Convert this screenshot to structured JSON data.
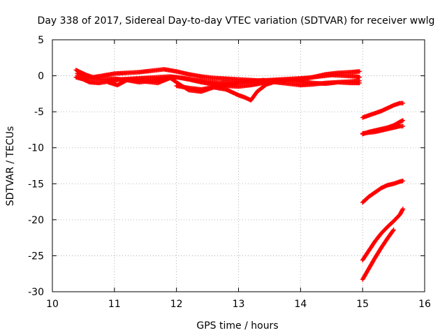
{
  "chart_data": {
    "type": "scatter",
    "title": "Day 338 of 2017, Sidereal Day-to-day VTEC variation (SDTVAR) for receiver wwlg",
    "xlabel": "GPS time / hours",
    "ylabel": "SDTVAR / TECUs",
    "xlim": [
      10,
      16
    ],
    "ylim": [
      -30,
      5
    ],
    "xticks": [
      10,
      11,
      12,
      13,
      14,
      15,
      16
    ],
    "yticks": [
      5,
      0,
      -5,
      -10,
      -15,
      -20,
      -25,
      -30
    ],
    "grid": true,
    "marker": "plus",
    "color": "#ff0000",
    "series": [
      {
        "x": [
          10.38,
          10.45,
          10.55,
          10.65,
          10.8,
          11.0,
          11.2,
          11.4,
          11.6,
          11.8,
          12.0,
          12.2,
          12.4,
          12.6,
          12.8,
          13.0,
          13.2,
          13.4,
          13.6,
          13.8,
          14.0,
          14.2,
          14.4,
          14.6,
          14.8,
          14.95
        ],
        "y": [
          0.8,
          0.5,
          0.1,
          -0.2,
          0.0,
          0.3,
          0.4,
          0.5,
          0.7,
          0.9,
          0.6,
          0.2,
          -0.1,
          -0.3,
          -0.4,
          -0.5,
          -0.6,
          -0.7,
          -0.7,
          -0.6,
          -0.5,
          -0.2,
          0.2,
          0.4,
          0.5,
          0.6
        ]
      },
      {
        "x": [
          10.38,
          10.5,
          10.6,
          10.75,
          10.9,
          11.1,
          11.3,
          11.5,
          11.7,
          11.9,
          12.1,
          12.3,
          12.5,
          12.7,
          12.9,
          13.1,
          13.3,
          13.5,
          13.7,
          13.9,
          14.1,
          14.3,
          14.5,
          14.7,
          14.9,
          14.95
        ],
        "y": [
          -0.2,
          -0.5,
          -0.9,
          -1.0,
          -0.8,
          -0.5,
          -0.4,
          -0.3,
          -0.2,
          -0.1,
          -0.3,
          -0.6,
          -0.8,
          -1.0,
          -0.9,
          -0.8,
          -0.7,
          -0.6,
          -0.5,
          -0.4,
          -0.3,
          -0.1,
          0.1,
          0.0,
          -0.1,
          -0.2
        ]
      },
      {
        "x": [
          10.4,
          10.5,
          10.6,
          10.8,
          11.0,
          11.2,
          11.4,
          11.6,
          11.8,
          12.0,
          12.2,
          12.4,
          12.6,
          12.8,
          13.0,
          13.2,
          13.4,
          13.6,
          13.8,
          14.0,
          14.2,
          14.4,
          14.6,
          14.8,
          14.95
        ],
        "y": [
          0.3,
          0.0,
          -0.3,
          -0.5,
          -0.4,
          -0.6,
          -0.9,
          -0.7,
          -0.4,
          -0.2,
          -0.5,
          -0.9,
          -1.2,
          -1.4,
          -1.5,
          -1.3,
          -1.0,
          -0.8,
          -0.6,
          -0.8,
          -1.0,
          -1.1,
          -0.9,
          -0.8,
          -0.7
        ]
      },
      {
        "x": [
          10.9,
          11.05,
          11.2,
          11.35,
          11.5,
          11.7,
          11.9,
          12.05,
          12.2,
          12.4,
          12.6,
          12.8,
          13.0,
          13.1,
          13.2,
          13.3,
          13.45,
          13.6
        ],
        "y": [
          -0.9,
          -1.3,
          -0.6,
          -0.4,
          -0.8,
          -1.0,
          -0.3,
          -1.2,
          -2.0,
          -2.2,
          -1.6,
          -1.9,
          -2.7,
          -3.0,
          -3.4,
          -2.2,
          -1.2,
          -0.8
        ]
      },
      {
        "x": [
          12.0,
          12.2,
          12.4,
          12.6,
          12.8,
          13.0,
          13.2,
          13.4,
          13.6,
          13.8,
          14.0,
          14.2,
          14.4,
          14.6,
          14.8,
          14.95
        ],
        "y": [
          -1.4,
          -1.7,
          -1.9,
          -1.6,
          -1.3,
          -1.0,
          -0.8,
          -0.6,
          -0.9,
          -1.1,
          -1.3,
          -1.2,
          -1.0,
          -0.9,
          -1.0,
          -1.0
        ]
      },
      {
        "x": [
          15.0,
          15.1,
          15.2,
          15.3,
          15.4,
          15.5,
          15.6,
          15.65
        ],
        "y": [
          -5.8,
          -5.5,
          -5.2,
          -4.9,
          -4.5,
          -4.1,
          -3.8,
          -3.8
        ]
      },
      {
        "x": [
          15.0,
          15.1,
          15.2,
          15.3,
          15.4,
          15.5,
          15.6,
          15.65
        ],
        "y": [
          -8.1,
          -7.8,
          -7.6,
          -7.4,
          -7.2,
          -6.9,
          -6.4,
          -6.2
        ]
      },
      {
        "x": [
          15.0,
          15.1,
          15.2,
          15.3,
          15.4,
          15.5,
          15.6,
          15.65
        ],
        "y": [
          -8.0,
          -7.9,
          -7.8,
          -7.6,
          -7.4,
          -7.2,
          -7.0,
          -7.0
        ]
      },
      {
        "x": [
          15.0,
          15.1,
          15.2,
          15.3,
          15.4,
          15.5,
          15.6,
          15.65
        ],
        "y": [
          -17.6,
          -16.8,
          -16.2,
          -15.6,
          -15.2,
          -15.0,
          -14.7,
          -14.6
        ]
      },
      {
        "x": [
          15.0,
          15.1,
          15.2,
          15.3,
          15.4,
          15.5,
          15.6,
          15.65
        ],
        "y": [
          -25.6,
          -24.3,
          -23.0,
          -21.9,
          -21.0,
          -20.2,
          -19.3,
          -18.5
        ]
      },
      {
        "x": [
          15.0,
          15.1,
          15.2,
          15.3,
          15.4,
          15.5
        ],
        "y": [
          -28.3,
          -26.8,
          -25.3,
          -23.9,
          -22.6,
          -21.4
        ]
      }
    ]
  }
}
